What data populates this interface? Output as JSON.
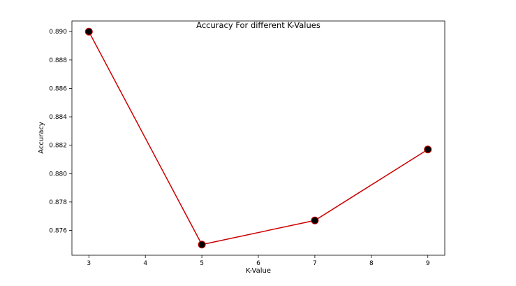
{
  "chart_data": {
    "type": "line",
    "title": "Accuracy For different K-Values",
    "xlabel": "K-Value",
    "ylabel": "Accuracy",
    "x": [
      3,
      5,
      7,
      9
    ],
    "series": [
      {
        "values": [
          0.89,
          0.875,
          0.8767,
          0.8817
        ],
        "line_color": "#cc0000",
        "marker_color": "#000000",
        "marker_edge_color": "#cc0000"
      }
    ],
    "xlim": [
      2.7,
      9.3
    ],
    "ylim": [
      0.87425,
      0.89075
    ],
    "xticks": [
      3,
      4,
      5,
      6,
      7,
      8,
      9
    ],
    "xtick_labels": [
      "3",
      "4",
      "5",
      "6",
      "7",
      "8",
      "9"
    ],
    "yticks": [
      0.876,
      0.878,
      0.88,
      0.882,
      0.884,
      0.886,
      0.888,
      0.89
    ],
    "ytick_labels": [
      "0.876",
      "0.878",
      "0.880",
      "0.882",
      "0.884",
      "0.886",
      "0.888",
      "0.890"
    ],
    "grid": false,
    "legend": "none"
  }
}
